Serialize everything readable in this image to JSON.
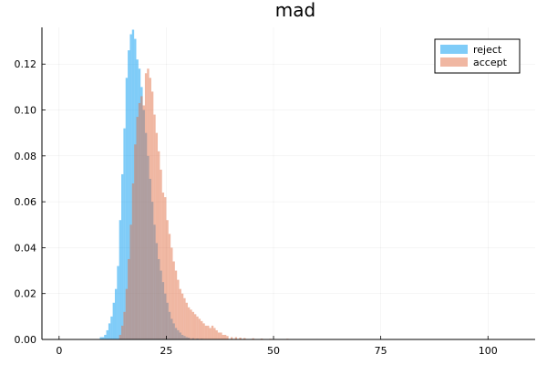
{
  "chart_data": {
    "type": "histogram",
    "title": "mad",
    "xlabel": "",
    "ylabel": "",
    "xlim": [
      -4,
      111
    ],
    "ylim": [
      0,
      0.136
    ],
    "xticks": [
      0,
      25,
      50,
      75,
      100
    ],
    "yticks": [
      0.0,
      0.02,
      0.04,
      0.06,
      0.08,
      0.1,
      0.12
    ],
    "ytick_labels": [
      "0.00",
      "0.02",
      "0.04",
      "0.06",
      "0.08",
      "0.10",
      "0.12"
    ],
    "grid": true,
    "legend_position": "top-right",
    "bin_width": 0.5,
    "series": [
      {
        "name": "reject",
        "color": "#0099f2",
        "bins": [
          [
            9.5,
            0.001
          ],
          [
            10.0,
            0.001
          ],
          [
            10.5,
            0.002
          ],
          [
            11.0,
            0.004
          ],
          [
            11.5,
            0.007
          ],
          [
            12.0,
            0.01
          ],
          [
            12.5,
            0.016
          ],
          [
            13.0,
            0.022
          ],
          [
            13.5,
            0.032
          ],
          [
            14.0,
            0.052
          ],
          [
            14.5,
            0.072
          ],
          [
            15.0,
            0.092
          ],
          [
            15.5,
            0.114
          ],
          [
            16.0,
            0.126
          ],
          [
            16.5,
            0.133
          ],
          [
            17.0,
            0.135
          ],
          [
            17.5,
            0.131
          ],
          [
            18.0,
            0.122
          ],
          [
            18.5,
            0.118
          ],
          [
            19.0,
            0.11
          ],
          [
            19.5,
            0.1
          ],
          [
            20.0,
            0.09
          ],
          [
            20.5,
            0.08
          ],
          [
            21.0,
            0.07
          ],
          [
            21.5,
            0.06
          ],
          [
            22.0,
            0.05
          ],
          [
            22.5,
            0.042
          ],
          [
            23.0,
            0.035
          ],
          [
            23.5,
            0.03
          ],
          [
            24.0,
            0.025
          ],
          [
            24.5,
            0.02
          ],
          [
            25.0,
            0.016
          ],
          [
            25.5,
            0.012
          ],
          [
            26.0,
            0.009
          ],
          [
            26.5,
            0.007
          ],
          [
            27.0,
            0.005
          ],
          [
            27.5,
            0.004
          ],
          [
            28.0,
            0.003
          ],
          [
            28.5,
            0.002
          ],
          [
            29.0,
            0.0015
          ],
          [
            29.5,
            0.001
          ],
          [
            30.0,
            0.0008
          ],
          [
            31.0,
            0.0005
          ],
          [
            32.0,
            0.0004
          ],
          [
            33.0,
            0.0003
          ]
        ]
      },
      {
        "name": "accept",
        "color": "#e26f46",
        "bins": [
          [
            14.0,
            0.002
          ],
          [
            14.5,
            0.006
          ],
          [
            15.0,
            0.012
          ],
          [
            15.5,
            0.022
          ],
          [
            16.0,
            0.035
          ],
          [
            16.5,
            0.05
          ],
          [
            17.0,
            0.068
          ],
          [
            17.5,
            0.085
          ],
          [
            18.0,
            0.097
          ],
          [
            18.5,
            0.103
          ],
          [
            19.0,
            0.106
          ],
          [
            19.5,
            0.102
          ],
          [
            20.0,
            0.116
          ],
          [
            20.5,
            0.118
          ],
          [
            21.0,
            0.114
          ],
          [
            21.5,
            0.108
          ],
          [
            22.0,
            0.098
          ],
          [
            22.5,
            0.09
          ],
          [
            23.0,
            0.082
          ],
          [
            23.5,
            0.074
          ],
          [
            24.0,
            0.064
          ],
          [
            24.5,
            0.062
          ],
          [
            25.0,
            0.052
          ],
          [
            25.5,
            0.046
          ],
          [
            26.0,
            0.04
          ],
          [
            26.5,
            0.034
          ],
          [
            27.0,
            0.03
          ],
          [
            27.5,
            0.026
          ],
          [
            28.0,
            0.022
          ],
          [
            28.5,
            0.02
          ],
          [
            29.0,
            0.018
          ],
          [
            29.5,
            0.016
          ],
          [
            30.0,
            0.014
          ],
          [
            30.5,
            0.013
          ],
          [
            31.0,
            0.012
          ],
          [
            31.5,
            0.011
          ],
          [
            32.0,
            0.01
          ],
          [
            32.5,
            0.009
          ],
          [
            33.0,
            0.008
          ],
          [
            33.5,
            0.007
          ],
          [
            34.0,
            0.006
          ],
          [
            34.5,
            0.006
          ],
          [
            35.0,
            0.005
          ],
          [
            35.5,
            0.006
          ],
          [
            36.0,
            0.005
          ],
          [
            36.5,
            0.004
          ],
          [
            37.0,
            0.003
          ],
          [
            37.5,
            0.003
          ],
          [
            38.0,
            0.002
          ],
          [
            38.5,
            0.002
          ],
          [
            39.0,
            0.0015
          ],
          [
            40.0,
            0.001
          ],
          [
            41.0,
            0.001
          ],
          [
            42.0,
            0.0008
          ],
          [
            43.0,
            0.0006
          ],
          [
            45.0,
            0.0005
          ],
          [
            47.0,
            0.0004
          ],
          [
            49.0,
            0.0003
          ],
          [
            53.0,
            0.0003
          ],
          [
            60.0,
            0.0002
          ]
        ]
      }
    ]
  }
}
